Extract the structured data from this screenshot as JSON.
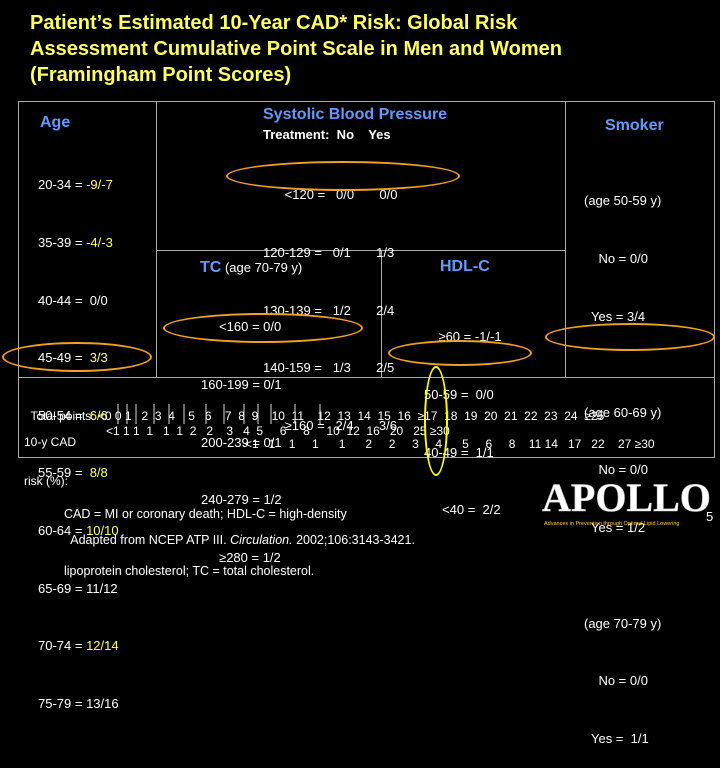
{
  "title": {
    "lines": [
      "Patient’s Estimated 10-Year CAD* Risk: Global Risk",
      "Assessment Cumulative Point Scale in Men and Women",
      "(Framingham Point Scores)"
    ]
  },
  "age": {
    "header": "Age",
    "rows": [
      {
        "range": "20-34 = ",
        "pts": "-9/-7"
      },
      {
        "range": "35-39 = ",
        "pts": "-4/-3"
      },
      {
        "range": "40-44 = ",
        "pts": " 0/0"
      },
      {
        "range": "45-49 = ",
        "pts": " 3/3"
      },
      {
        "range": "50-54 = ",
        "pts": " 6/6"
      },
      {
        "range": "55-59 = ",
        "pts": " 8/8"
      },
      {
        "range": "60-64 = ",
        "pts": "10/10"
      },
      {
        "range": "65-69 = ",
        "pts": "11/12"
      },
      {
        "range": "70-74 = ",
        "pts": "12/14"
      },
      {
        "range": "75-79 = ",
        "pts": "13/16"
      }
    ]
  },
  "sbp": {
    "header": "Systolic Blood Pressure",
    "subheader": "Treatment:  No    Yes",
    "rows": [
      "      <120 =   0/0       0/0",
      "120-129 =   0/1       1/3",
      "130-139 =   1/2       2/4",
      "140-159 =   1/3       2/5",
      "      ≥160 =   2/4       3/6"
    ]
  },
  "smoker": {
    "header": "Smoker",
    "rows": [
      "(age 50-59 y)",
      "    No = 0/0",
      "  Yes = 3/4",
      "",
      "(age 60-69 y)",
      "    No = 0/0",
      "  Yes = 1/2",
      "",
      "(age 70-79 y)",
      "    No = 0/0",
      "  Yes =  1/1"
    ]
  },
  "tc": {
    "header": "TC",
    "header_note": " (age 70-79 y)",
    "rows": [
      "     <160 = 0/0",
      "160-199 = 0/1",
      "200-239 = 0/1",
      "240-279 = 1/2",
      "     ≥280 = 1/2"
    ]
  },
  "hdl": {
    "header": "HDL-C",
    "rows": [
      "    ≥60 = -1/-1",
      "50-59 =  0/0",
      "40-49 =  1/1",
      "     <40 =  2/2"
    ]
  },
  "scale": {
    "points_label": "Total points:",
    "points": "<0 0 1   2  3  4    5   6    7  8  9    10  11    12  13  14  15  16  ≥17  18  19  20  21  22  23  24  ≥25",
    "risk_label_1": "10-y CAD",
    "risk_label_2": "risk (%):",
    "risk_row1": "<1 1 1  1   1  1  2   2    3   4  5     6     8     10  12  16   20   25 ≥30",
    "risk_row2": "<1   1    1     1      1      2     2     3     4      5     6     8    11 14   17   22    27 ≥30"
  },
  "footer": {
    "note1": "CAD = MI or coronary death; HDL-C = high-density",
    "note2": "lipoprotein cholesterol; TC = total cholesterol.",
    "source_prefix": "Adapted from NCEP ATP III. ",
    "source_journal": "Circulation.",
    "source_suffix": " 2002;106:3143-3421."
  },
  "logo": {
    "name": "APOLLO",
    "tagline": "Advances in Prevention through Optimal Lipid Lowering"
  },
  "page_number": "5"
}
